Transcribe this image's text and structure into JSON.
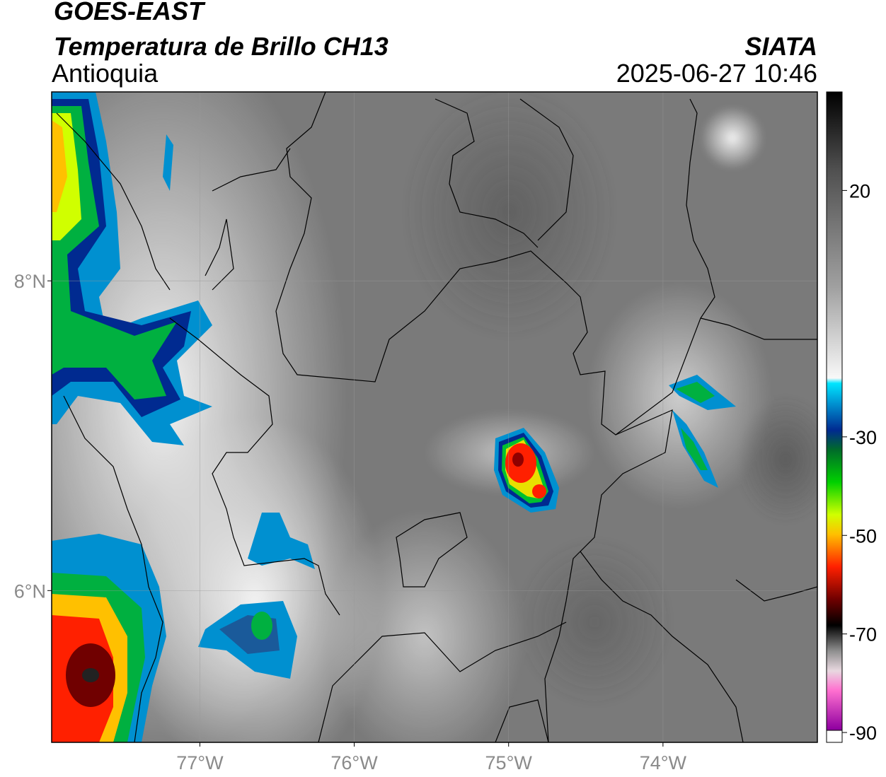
{
  "header": {
    "title": "GOES-EAST",
    "subtitle": "Temperatura de Brillo CH13",
    "region": "Antioquia",
    "source": "SIATA",
    "datetime": "2025-06-27 10:46"
  },
  "map": {
    "xlim": [
      -77.96,
      -73.0
    ],
    "ylim": [
      5.02,
      9.22
    ],
    "xticks": [
      {
        "value": -77,
        "label": "77°W"
      },
      {
        "value": -76,
        "label": "76°W"
      },
      {
        "value": -75,
        "label": "75°W"
      },
      {
        "value": -74,
        "label": "74°W"
      }
    ],
    "yticks": [
      {
        "value": 6,
        "label": "6°N"
      },
      {
        "value": 8,
        "label": "8°N"
      }
    ],
    "grid": true
  },
  "colorbar": {
    "clim": [
      -92,
      40
    ],
    "ticks": [
      20,
      -30,
      -50,
      -70,
      -90
    ]
  }
}
